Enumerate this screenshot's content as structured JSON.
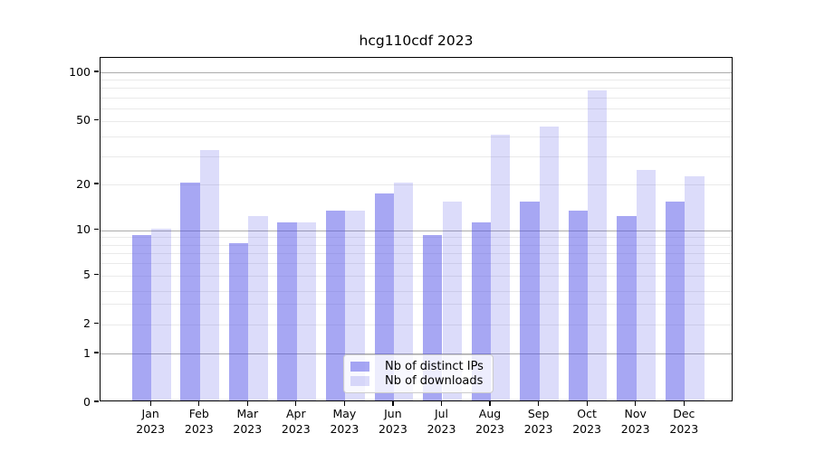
{
  "chart_data": {
    "type": "bar",
    "title": "hcg110cdf 2023",
    "year_label": "2023",
    "categories": [
      "Jan",
      "Feb",
      "Mar",
      "Apr",
      "May",
      "Jun",
      "Jul",
      "Aug",
      "Sep",
      "Oct",
      "Nov",
      "Dec"
    ],
    "series": [
      {
        "name": "Nb of distinct IPs",
        "color": "rgba(80,80,232,0.5)",
        "values": [
          9,
          20,
          8,
          11,
          13,
          17,
          9,
          11,
          15,
          13,
          12,
          15
        ]
      },
      {
        "name": "Nb of downloads",
        "color": "rgba(80,80,232,0.2)",
        "values": [
          10,
          32,
          12,
          11,
          13,
          20,
          15,
          40,
          45,
          75,
          24,
          22
        ]
      }
    ],
    "yscale": "symlog",
    "ylim": [
      0,
      120
    ],
    "yticks": [
      100,
      50,
      20,
      10,
      5,
      2,
      1,
      0
    ],
    "minor_gridline_values": [
      2,
      3,
      4,
      5,
      6,
      7,
      8,
      9,
      20,
      30,
      40,
      50,
      60,
      70,
      80,
      90
    ],
    "major_gridline_values": [
      1,
      10,
      100
    ],
    "grid": "both",
    "legend_position": "lower center"
  }
}
